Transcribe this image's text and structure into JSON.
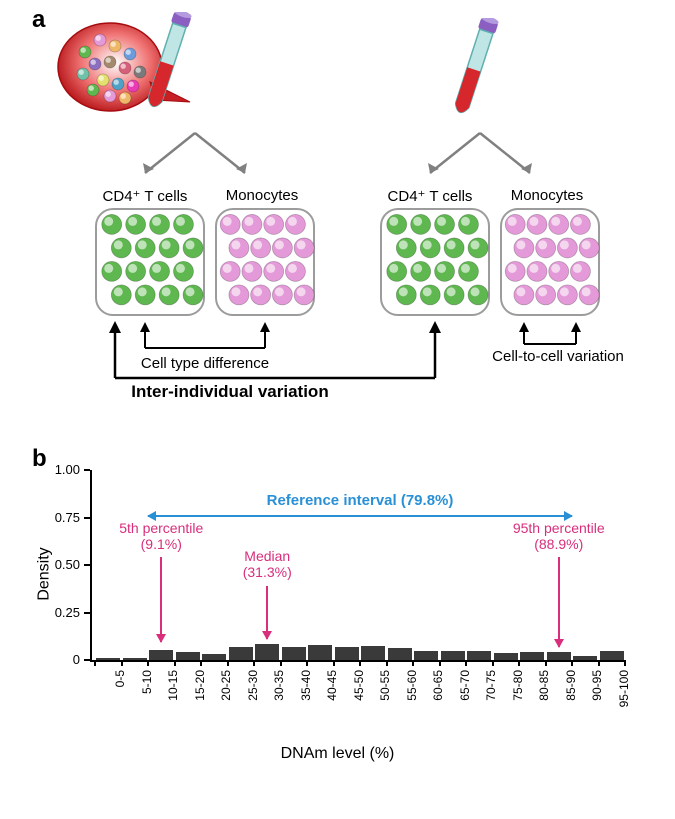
{
  "panels": {
    "a": "a",
    "b": "b"
  },
  "panel_a": {
    "cell_type_left": "CD4⁺ T cells",
    "cell_type_right": "Monocytes",
    "tcell_color": "#5fb84f",
    "monocyte_color": "#e49ad8",
    "box_border": "#9c9c9c",
    "cell_type_diff": "Cell type difference",
    "cell_to_cell": "Cell-to-cell variation",
    "inter_individual": "Inter-individual variation",
    "tube_colors": {
      "cap": "#8a5fc1",
      "glass": "#bfe6e4",
      "blood": "#d6272c"
    },
    "sample_colors": [
      "#5fb84f",
      "#e49ad8",
      "#efb768",
      "#6a9bdc",
      "#8c6fbf",
      "#a48a6c",
      "#d65f7a",
      "#7a7a7a",
      "#6fc1a7",
      "#e4e06e",
      "#4ea1c7",
      "#e93bb5"
    ],
    "arrow_color": "#808080",
    "text_color": "#000000"
  },
  "panel_b": {
    "type": "histogram",
    "xlabel": "DNAm level (%)",
    "ylabel": "Density",
    "ylim": [
      0,
      1.0
    ],
    "yticks": [
      0,
      0.25,
      0.5,
      0.75,
      1.0
    ],
    "ytick_labels": [
      "0",
      "0.25",
      "0.50",
      "0.75",
      "1.00"
    ],
    "categories": [
      "0-5",
      "5-10",
      "10-15",
      "15-20",
      "20-25",
      "25-30",
      "30-35",
      "35-40",
      "40-45",
      "45-50",
      "50-55",
      "55-60",
      "60-65",
      "65-70",
      "70-75",
      "75-80",
      "80-85",
      "85-90",
      "90-95",
      "95-100"
    ],
    "values": [
      0.01,
      0.01,
      0.055,
      0.04,
      0.03,
      0.07,
      0.085,
      0.07,
      0.08,
      0.07,
      0.075,
      0.065,
      0.05,
      0.05,
      0.05,
      0.035,
      0.04,
      0.04,
      0.02,
      0.05
    ],
    "bar_color": "#3a3a3a",
    "background": "#ffffff",
    "grid": false,
    "bar_width": 0.9,
    "label_fontsize": 16,
    "tick_fontsize": 12,
    "pink": "#d82e7c",
    "blue": "#2a90d6",
    "annotations": {
      "p5": {
        "label1": "5th percentile",
        "label2": "(9.1%)",
        "x_bin": 2,
        "color": "#d82e7c"
      },
      "median": {
        "label1": "Median",
        "label2": "(31.3%)",
        "x_bin": 6,
        "color": "#d82e7c"
      },
      "p95": {
        "label1": "95th percentile",
        "label2": "(88.9%)",
        "x_bin": 17,
        "color": "#d82e7c"
      },
      "ref": {
        "label": "Reference interval (79.8%)",
        "from_bin": 2,
        "to_bin": 17,
        "color": "#2a90d6"
      }
    }
  }
}
